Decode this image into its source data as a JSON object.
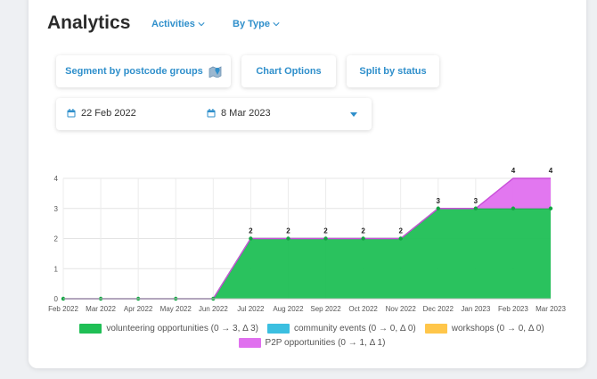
{
  "header": {
    "title": "Analytics",
    "nav": [
      {
        "label": "Activities"
      },
      {
        "label": "By Type"
      }
    ]
  },
  "controls": {
    "segment_label": "Segment by postcode groups",
    "chart_options_label": "Chart Options",
    "split_label": "Split by status"
  },
  "date_range": {
    "start": "22 Feb 2022",
    "end": "8 Mar 2023"
  },
  "colors": {
    "accent": "#2f8fcb",
    "volunteering": "#1fbf55",
    "community": "#3bbfe0",
    "workshops": "#ffc64a",
    "p2p": "#e070ef"
  },
  "chart_data": {
    "type": "area",
    "stacked": true,
    "categories": [
      "Feb 2022",
      "Mar 2022",
      "Apr 2022",
      "May 2022",
      "Jun 2022",
      "Jul 2022",
      "Aug 2022",
      "Sep 2022",
      "Oct 2022",
      "Nov 2022",
      "Dec 2022",
      "Jan 2023",
      "Feb 2023",
      "Mar 2023"
    ],
    "ylim": [
      0,
      4
    ],
    "yticks": [
      0,
      1,
      2,
      3,
      4
    ],
    "grid": true,
    "legend_position": "bottom",
    "series": [
      {
        "name": "volunteering opportunities (0 → 3, Δ 3)",
        "values": [
          0,
          0,
          0,
          0,
          0,
          2,
          2,
          2,
          2,
          2,
          3,
          3,
          3,
          3
        ]
      },
      {
        "name": "community events (0 → 0, Δ 0)",
        "values": [
          0,
          0,
          0,
          0,
          0,
          0,
          0,
          0,
          0,
          0,
          0,
          0,
          0,
          0
        ]
      },
      {
        "name": "workshops (0 → 0, Δ 0)",
        "values": [
          0,
          0,
          0,
          0,
          0,
          0,
          0,
          0,
          0,
          0,
          0,
          0,
          0,
          0
        ]
      },
      {
        "name": "P2P opportunities (0 → 1, Δ 1)",
        "values": [
          0,
          0,
          0,
          0,
          0,
          0,
          0,
          0,
          0,
          0,
          0,
          0,
          1,
          1
        ]
      }
    ],
    "data_labels": [
      "",
      "",
      "",
      "",
      "",
      "2",
      "2",
      "2",
      "2",
      "2",
      "3",
      "3",
      "4",
      "4"
    ]
  }
}
